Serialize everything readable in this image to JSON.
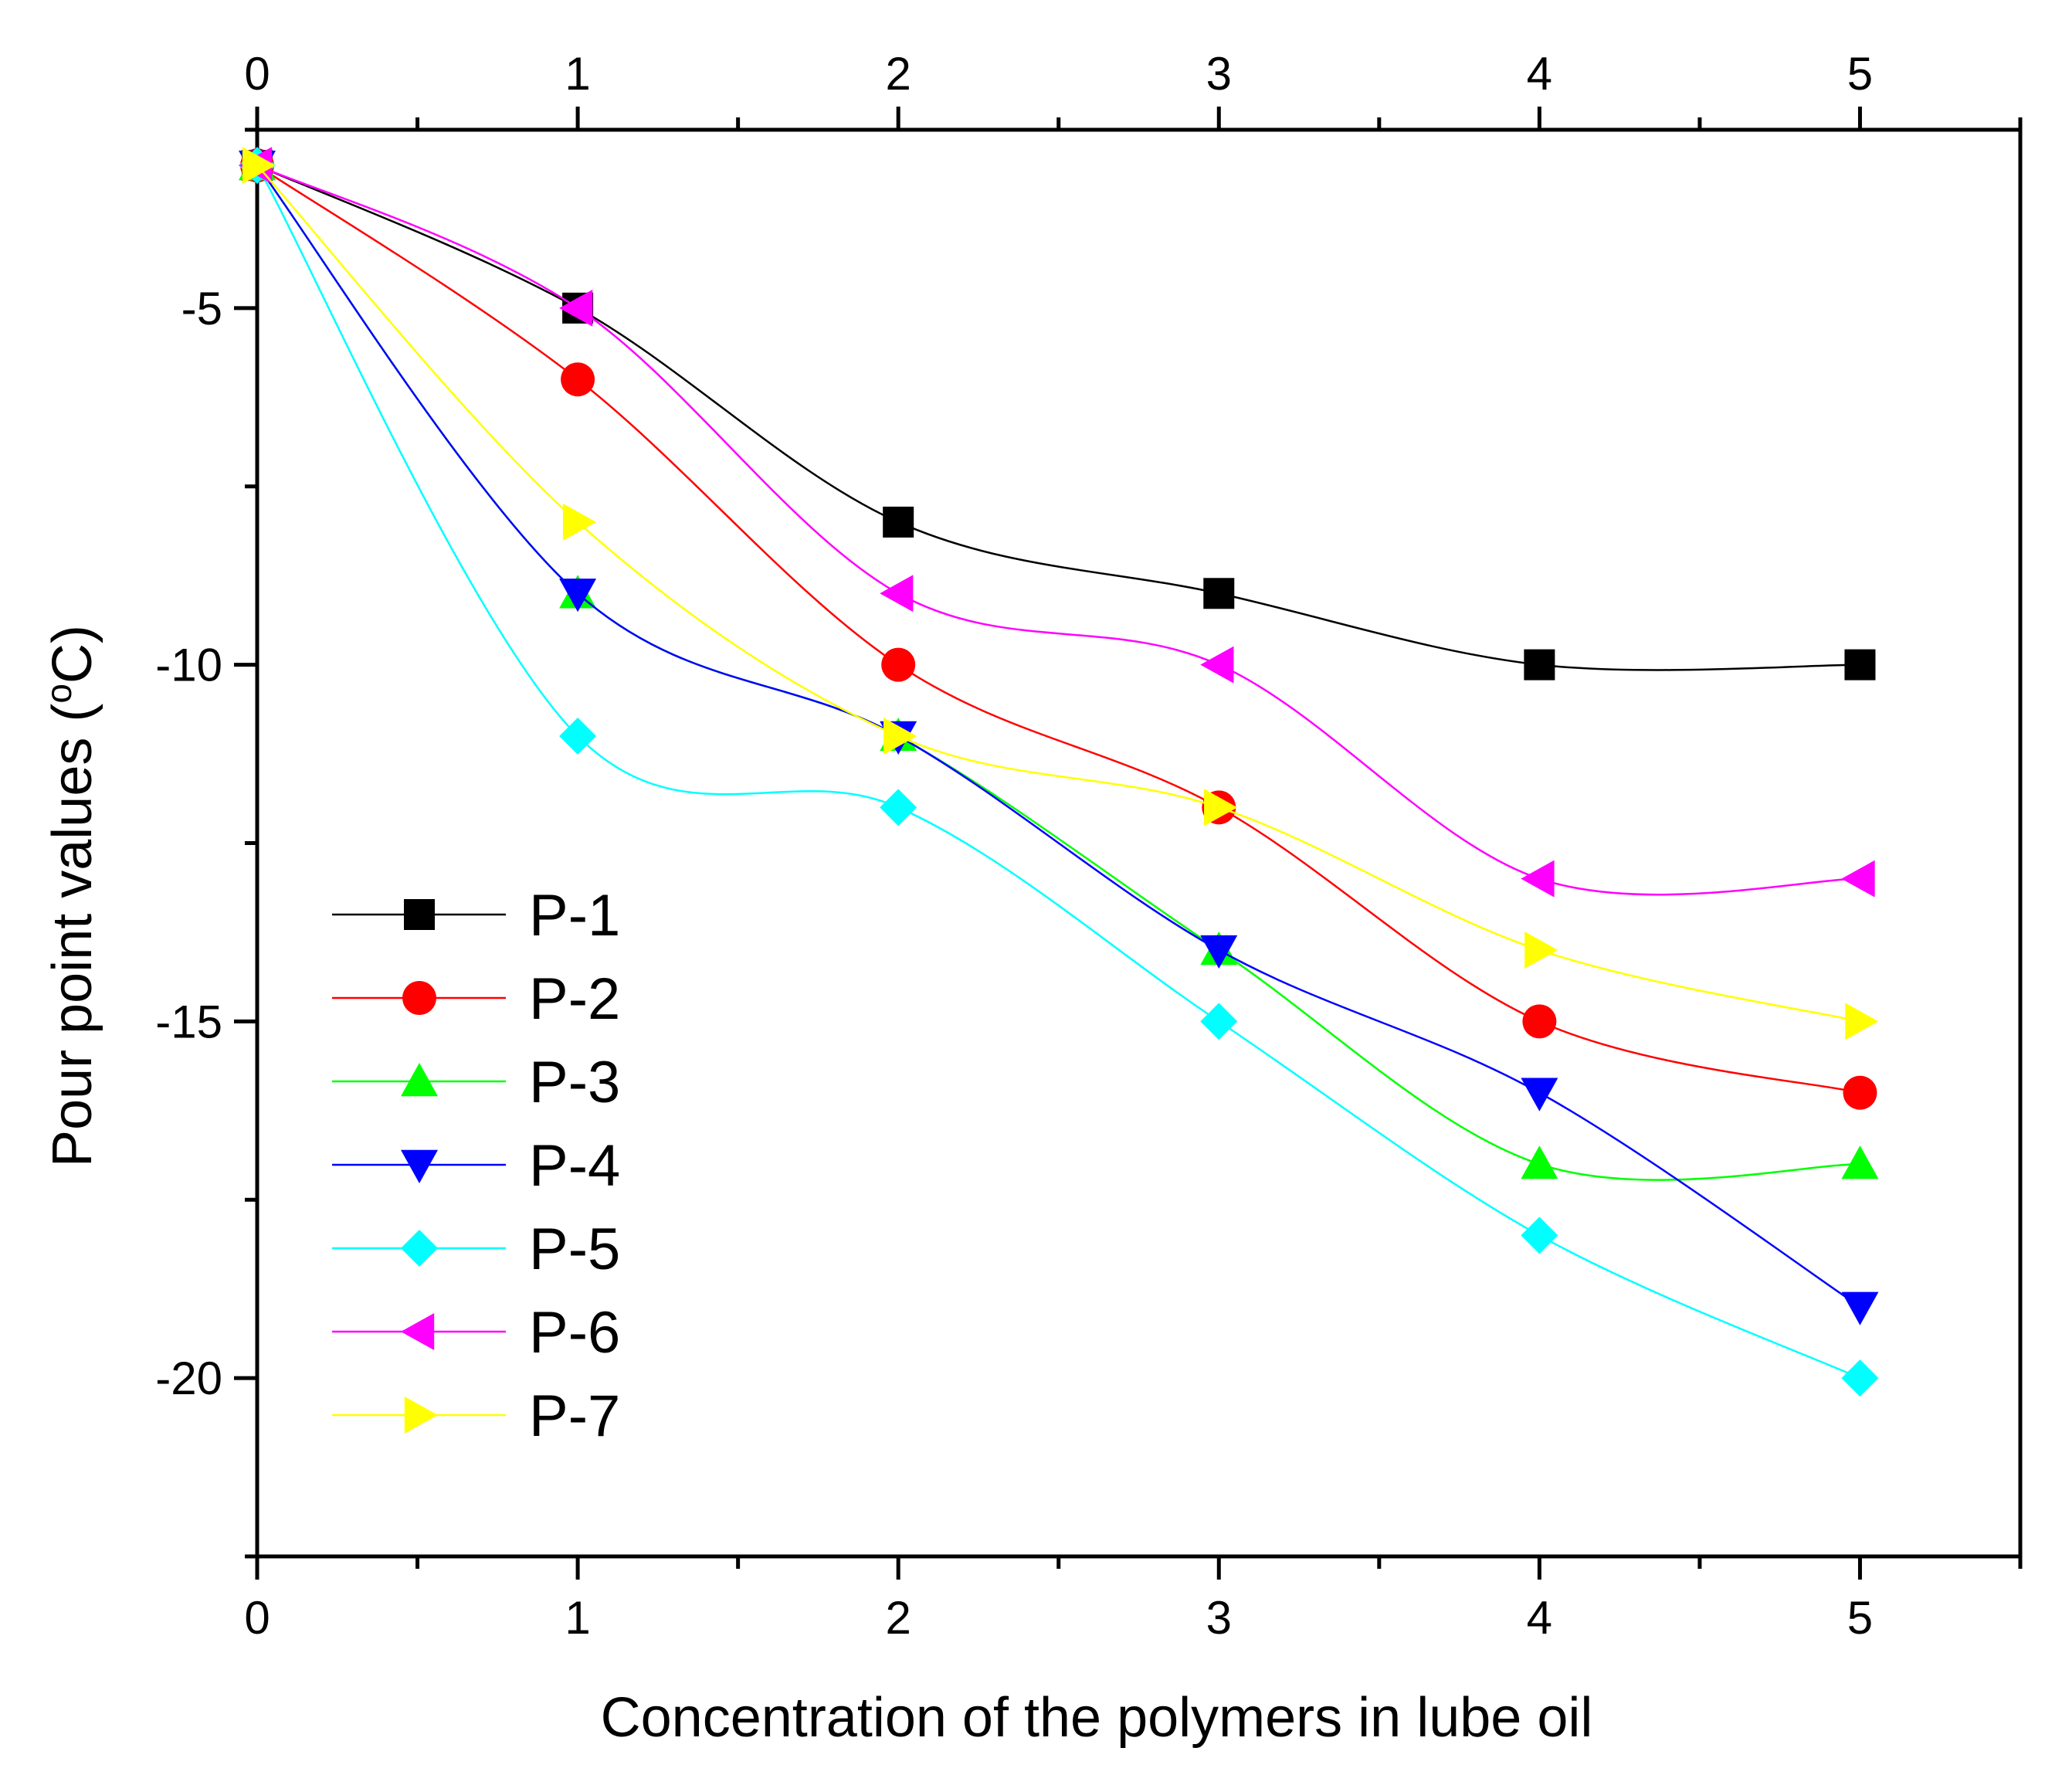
{
  "chart_data": {
    "type": "line",
    "title": "",
    "xlabel": "Concentration of the polymers in lube oil",
    "ylabel_main": "Pour point values (",
    "ylabel_sup": "o",
    "ylabel_end": "C)",
    "xlim": [
      0,
      5.5
    ],
    "ylim": [
      -22.5,
      -2.5
    ],
    "x_ticks": [
      0,
      1,
      2,
      3,
      4,
      5
    ],
    "x_tick_labels": [
      "0",
      "1",
      "2",
      "3",
      "4",
      "5"
    ],
    "y_ticks": [
      -5,
      -10,
      -15,
      -20
    ],
    "y_tick_labels": [
      "-5",
      "-10",
      "-15",
      "-20"
    ],
    "legend_position": "lower-left",
    "x": [
      0,
      1,
      2,
      3,
      4,
      5
    ],
    "series": [
      {
        "name": "P-1",
        "marker": "square",
        "color": "#000000",
        "values": [
          -3,
          -5,
          -8,
          -9,
          -10,
          -10
        ]
      },
      {
        "name": "P-2",
        "marker": "circle",
        "color": "#ff0000",
        "values": [
          -3,
          -6,
          -10,
          -12,
          -15,
          -16
        ]
      },
      {
        "name": "P-3",
        "marker": "triangle-up",
        "color": "#00ff00",
        "values": [
          -3,
          -9,
          -11,
          -14,
          -17,
          -17
        ]
      },
      {
        "name": "P-4",
        "marker": "triangle-down",
        "color": "#0000ff",
        "values": [
          -3,
          -9,
          -11,
          -14,
          -16,
          -19
        ]
      },
      {
        "name": "P-5",
        "marker": "diamond",
        "color": "#00ffff",
        "values": [
          -3,
          -11,
          -12,
          -15,
          -18,
          -20
        ]
      },
      {
        "name": "P-6",
        "marker": "triangle-left",
        "color": "#ff00ff",
        "values": [
          -3,
          -5,
          -9,
          -10,
          -13,
          -13
        ]
      },
      {
        "name": "P-7",
        "marker": "triangle-right",
        "color": "#ffff00",
        "values": [
          -3,
          -8,
          -11,
          -12,
          -14,
          -15
        ]
      }
    ]
  }
}
